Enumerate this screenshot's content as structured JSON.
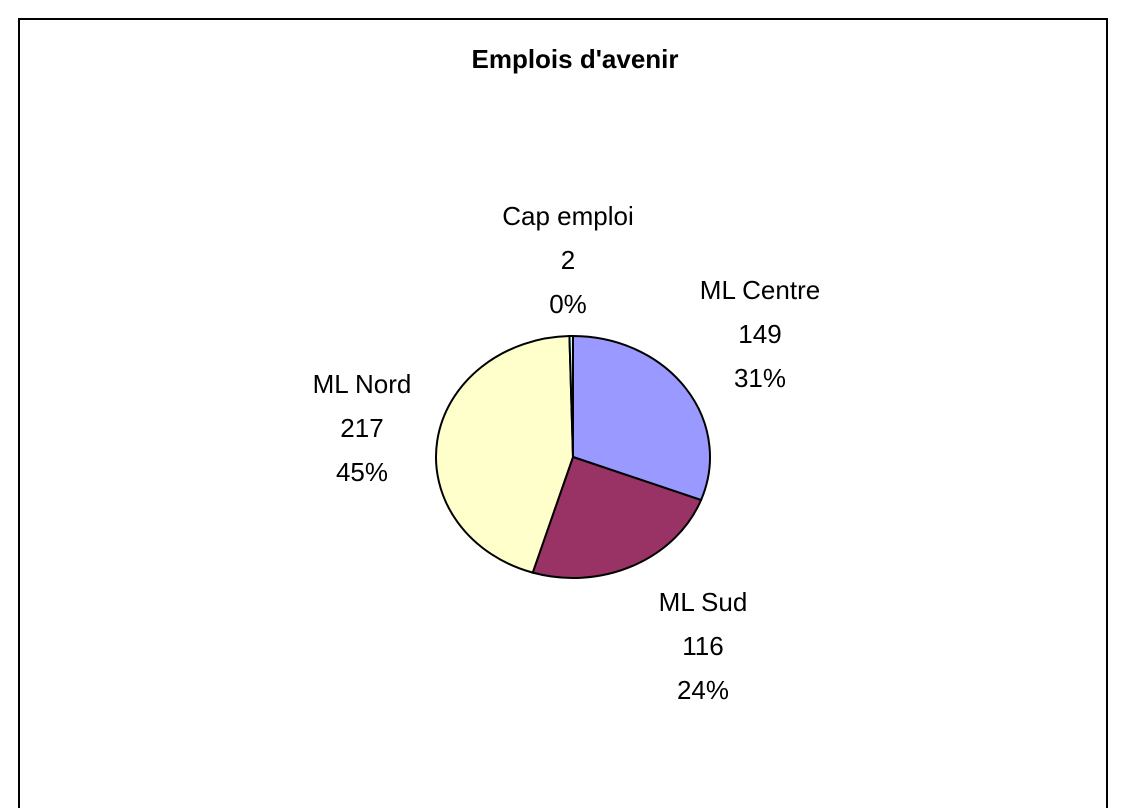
{
  "chart_data": {
    "type": "pie",
    "title": "Emplois d'avenir",
    "categories": [
      "ML Centre",
      "ML Sud",
      "ML Nord",
      "Cap emploi"
    ],
    "values": [
      149,
      116,
      217,
      2
    ],
    "percent_labels": [
      "31%",
      "24%",
      "45%",
      "0%"
    ],
    "colors": [
      "#9999ff",
      "#993366",
      "#ffffcc",
      "#ccffff"
    ]
  }
}
